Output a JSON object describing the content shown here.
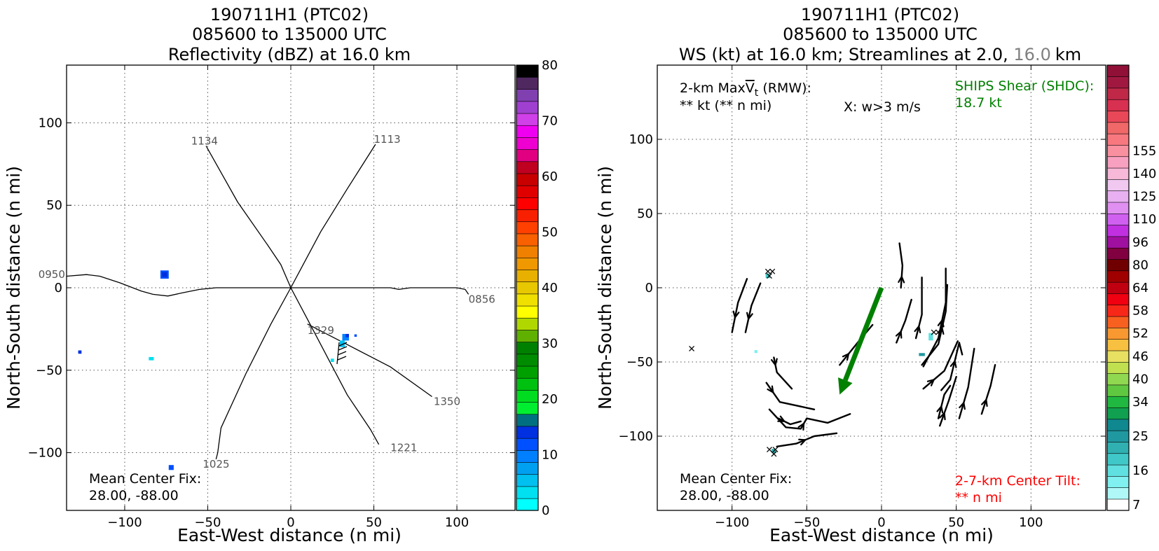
{
  "chart_data": [
    {
      "type": "heatmap",
      "title_lines": [
        "190711H1 (PTC02)",
        "085600 to 135000 UTC",
        "Reflectivity (dBZ) at 16.0 km"
      ],
      "xlabel": "East-West distance (n mi)",
      "ylabel": "North-South distance (n mi)",
      "xlim": [
        -135,
        135
      ],
      "ylim": [
        -135,
        135
      ],
      "xticks": [
        -100,
        -50,
        0,
        50,
        100
      ],
      "yticks": [
        -100,
        -50,
        0,
        50,
        100
      ],
      "xtick_labels": [
        "−100",
        "−50",
        "0",
        "50",
        "100"
      ],
      "ytick_labels": [
        "−100",
        "−50",
        "0",
        "50",
        "100"
      ],
      "grid": true,
      "colorbar": {
        "label_values": [
          0,
          10,
          20,
          30,
          40,
          50,
          60,
          70,
          80
        ],
        "tick_labels": [
          "0",
          "10",
          "20",
          "30",
          "40",
          "50",
          "60",
          "70",
          "80"
        ],
        "colors": [
          "#00ffff",
          "#00e0f0",
          "#00c0f0",
          "#00a0f0",
          "#0080ff",
          "#0050ff",
          "#0030e0",
          "#007080",
          "#00ee30",
          "#00dd20",
          "#00c010",
          "#00a000",
          "#008c00",
          "#008000",
          "#60b000",
          "#b0d800",
          "#ffff00",
          "#f0e000",
          "#e8c800",
          "#e8b000",
          "#f09800",
          "#f08000",
          "#f86000",
          "#ff4000",
          "#f82000",
          "#ff0000",
          "#e00000",
          "#c80000",
          "#c00020",
          "#e00080",
          "#ee00d0",
          "#f000f0",
          "#d040e8",
          "#a040d0",
          "#8040b0",
          "#502860",
          "#000000"
        ]
      },
      "flight_tracks": [
        {
          "label": "1134",
          "label_at": [
            -60,
            89
          ],
          "points": [
            [
              -51,
              86
            ],
            [
              -32,
              52
            ],
            [
              -14,
              26
            ],
            [
              -6,
              14
            ],
            [
              0,
              0
            ],
            [
              10,
              -19
            ],
            [
              22,
              -42
            ],
            [
              34,
              -65
            ],
            [
              48,
              -86
            ],
            [
              53,
              -95
            ]
          ],
          "end_label": "1221",
          "end_label_at": [
            60,
            -97
          ]
        },
        {
          "label": "1113",
          "label_at": [
            50,
            90
          ],
          "points": [
            [
              51,
              87
            ],
            [
              34,
              60
            ],
            [
              18,
              34
            ],
            [
              0,
              0
            ],
            [
              -12,
              -22
            ],
            [
              -27,
              -52
            ],
            [
              -42,
              -85
            ],
            [
              -44,
              -100
            ],
            [
              -45,
              -104
            ]
          ],
          "end_label": "1025",
          "end_label_at": [
            -53,
            -107
          ]
        },
        {
          "label": "0950",
          "label_at": [
            -152,
            8
          ],
          "points": [
            [
              -135,
              7
            ],
            [
              -123,
              8
            ],
            [
              -115,
              7
            ],
            [
              -103,
              3
            ],
            [
              -90,
              -2
            ],
            [
              -83,
              -4
            ],
            [
              -74,
              -5
            ],
            [
              -65,
              -3
            ],
            [
              -55,
              -1
            ],
            [
              -45,
              0
            ],
            [
              0,
              0
            ],
            [
              60,
              0
            ],
            [
              65,
              -1
            ],
            [
              72,
              0
            ],
            [
              100,
              0
            ],
            [
              105,
              -1
            ],
            [
              107,
              -4
            ]
          ],
          "end_label": "0856",
          "end_label_at": [
            107,
            -7
          ]
        },
        {
          "label": "1329",
          "label_at": [
            10,
            -26
          ],
          "points": [
            [
              10,
              -22
            ],
            [
              35,
              -35
            ],
            [
              60,
              -48
            ],
            [
              85,
              -66
            ]
          ],
          "end_label": "1350",
          "end_label_at": [
            86,
            -69
          ]
        }
      ],
      "echoes": [
        {
          "x": -76,
          "y": 8,
          "w": 5,
          "h": 5,
          "dbz": 10,
          "color": "#0050ff"
        },
        {
          "x": -76,
          "y": 8,
          "w": 3,
          "h": 3,
          "dbz": 12,
          "color": "#0030e0"
        },
        {
          "x": -127,
          "y": -39,
          "w": 2,
          "h": 2,
          "dbz": 12,
          "color": "#0030e0"
        },
        {
          "x": -84,
          "y": -43,
          "w": 3,
          "h": 2,
          "dbz": 4,
          "color": "#00e0f0"
        },
        {
          "x": -72,
          "y": -109,
          "w": 3,
          "h": 3,
          "dbz": 10,
          "color": "#0050ff"
        },
        {
          "x": 33,
          "y": -30,
          "w": 4,
          "h": 4,
          "dbz": 8,
          "color": "#0080ff"
        },
        {
          "x": 31,
          "y": -34,
          "w": 3,
          "h": 4,
          "dbz": 4,
          "color": "#00c0f0"
        },
        {
          "x": 39,
          "y": -29,
          "w": 1.5,
          "h": 1.5,
          "dbz": 10,
          "color": "#0050ff"
        },
        {
          "x": 25,
          "y": -44,
          "w": 2,
          "h": 2,
          "dbz": 2,
          "color": "#00e0f0"
        },
        {
          "x": 34,
          "y": -29,
          "w": 2,
          "h": 2,
          "dbz": 12,
          "color": "#0030e0"
        }
      ],
      "note": {
        "lines": [
          "Mean Center Fix:",
          "28.00, -88.00"
        ]
      }
    },
    {
      "type": "heatmap",
      "title_lines": [
        "190711H1 (PTC02)",
        "085600 to 135000 UTC"
      ],
      "title_line3": {
        "prefix": "WS (kt) at 16.0 km; Streamlines at 2.0,",
        "gray_part": "16.0",
        "suffix": "km"
      },
      "xlabel": "East-West distance (n mi)",
      "ylabel": "North-South distance (n mi)",
      "xlim": [
        -150,
        150
      ],
      "ylim": [
        -150,
        150
      ],
      "xticks": [
        -100,
        -50,
        0,
        50,
        100
      ],
      "yticks": [
        -100,
        -50,
        0,
        50,
        100
      ],
      "xtick_labels": [
        "−100",
        "−50",
        "0",
        "50",
        "100"
      ],
      "ytick_labels": [
        "−100",
        "−50",
        "0",
        "50",
        "100"
      ],
      "grid": true,
      "colorbar": {
        "tick_labels": [
          "7",
          "16",
          "25",
          "34",
          "40",
          "46",
          "52",
          "58",
          "64",
          "80",
          "96",
          "110",
          "125",
          "140",
          "155"
        ],
        "label_positions": [
          0,
          3,
          6,
          9,
          11,
          13,
          15,
          17,
          19,
          21,
          23,
          25,
          27,
          29,
          31
        ],
        "colors": [
          "#ffffff",
          "#b0f8f8",
          "#80f0f0",
          "#60e0e0",
          "#40c8c8",
          "#30b0b0",
          "#2098a0",
          "#108890",
          "#10a050",
          "#20b840",
          "#60c840",
          "#90d850",
          "#c0e050",
          "#e8e060",
          "#f8c040",
          "#f89830",
          "#f86020",
          "#f82818",
          "#f00010",
          "#c00010",
          "#a00000",
          "#700000",
          "#800040",
          "#a010a0",
          "#c030e0",
          "#d060f0",
          "#e090f0",
          "#e8b0f0",
          "#f0c8f0",
          "#f8b8d8",
          "#f8a0c0",
          "#f890a0",
          "#f87880",
          "#f06868",
          "#e84858",
          "#d83050",
          "#c02848",
          "#a01840",
          "#901038"
        ]
      },
      "info_lines": [
        "2-km MaxV̅t (RMW):",
        "** kt (** n mi)"
      ],
      "info_pieces": {
        "a": "2-km Max",
        "v": "V",
        "t": "t",
        "b": " (RMW):"
      },
      "wlegend": "X: w>3 m/s",
      "shear": {
        "lines": [
          "SHIPS Shear (SHDC):",
          "18.7 kt"
        ],
        "color": "#008000",
        "vector_from": [
          0,
          0
        ],
        "vector_to": [
          -28,
          -72
        ]
      },
      "tilt": {
        "lines": [
          "2-7-km Center Tilt:",
          "** n mi"
        ],
        "color": "#ff0000"
      },
      "note": {
        "lines": [
          "Mean Center Fix:",
          "28.00, -88.00"
        ]
      },
      "w_marks": [
        [
          -127,
          -41
        ],
        [
          -76,
          11
        ],
        [
          -73,
          11
        ],
        [
          -75,
          8
        ],
        [
          -71,
          -109
        ],
        [
          -75,
          -109
        ],
        [
          -72,
          -112
        ],
        [
          35,
          -30
        ],
        [
          38,
          -30
        ]
      ],
      "ws_cells": [
        {
          "x": -76,
          "y": 8,
          "w": 3,
          "h": 3,
          "color": "#40c8c8"
        },
        {
          "x": -84,
          "y": -43,
          "w": 2,
          "h": 2,
          "color": "#80f0f0"
        },
        {
          "x": 33,
          "y": -33,
          "w": 3,
          "h": 5,
          "color": "#60e0e0"
        },
        {
          "x": 27,
          "y": -45,
          "w": 4,
          "h": 2,
          "color": "#2098a0"
        },
        {
          "x": -72,
          "y": -110,
          "w": 3,
          "h": 3,
          "color": "#30b0b0"
        }
      ],
      "streamlines": [
        {
          "pts": [
            [
              -100,
              -30
            ],
            [
              -96,
              -10
            ],
            [
              -90,
              6
            ]
          ],
          "arrow": "down"
        },
        {
          "pts": [
            [
              -91,
              -30
            ],
            [
              -87,
              -12
            ],
            [
              -81,
              3
            ]
          ],
          "arrow": "down"
        },
        {
          "pts": [
            [
              -72,
              -47
            ],
            [
              -70,
              -57
            ],
            [
              -60,
              -68
            ]
          ],
          "arrow": "down"
        },
        {
          "pts": [
            [
              -77,
              -64
            ],
            [
              -68,
              -77
            ],
            [
              -45,
              -82
            ]
          ],
          "arrow": "down"
        },
        {
          "pts": [
            [
              -75,
              -82
            ],
            [
              -64,
              -94
            ],
            [
              -54,
              -95
            ],
            [
              -50,
              -88
            ],
            [
              -36,
              -91
            ],
            [
              -21,
              -85
            ]
          ],
          "arrow": "right"
        },
        {
          "pts": [
            [
              -69,
              -88
            ],
            [
              -61,
              -92
            ],
            [
              -54,
              -90
            ]
          ],
          "arrow": "right"
        },
        {
          "pts": [
            [
              -70,
              -107
            ],
            [
              -57,
              -105
            ],
            [
              -45,
              -100
            ],
            [
              -30,
              -98
            ]
          ],
          "arrow": "right"
        },
        {
          "pts": [
            [
              -28,
              -52
            ],
            [
              -16,
              -37
            ],
            [
              -6,
              -25
            ]
          ],
          "arrow": "up"
        },
        {
          "pts": [
            [
              10,
              -37
            ],
            [
              16,
              -22
            ],
            [
              20,
              -8
            ]
          ],
          "arrow": "up"
        },
        {
          "pts": [
            [
              13,
              0
            ],
            [
              14,
              15
            ],
            [
              12,
              30
            ]
          ],
          "arrow": "up"
        },
        {
          "pts": [
            [
              23,
              -34
            ],
            [
              27,
              -18
            ],
            [
              27,
              7
            ]
          ],
          "arrow": "up"
        },
        {
          "pts": [
            [
              27,
              -52
            ],
            [
              38,
              -38
            ],
            [
              43,
              -16
            ],
            [
              44,
              2
            ]
          ],
          "arrow": "up"
        },
        {
          "pts": [
            [
              28,
              -53
            ],
            [
              38,
              -34
            ],
            [
              43,
              -10
            ],
            [
              43,
              13
            ]
          ],
          "arrow": "up"
        },
        {
          "pts": [
            [
              40,
              -69
            ],
            [
              46,
              -62
            ],
            [
              52,
              -37
            ],
            [
              54,
              -45
            ]
          ],
          "arrow": "up"
        },
        {
          "pts": [
            [
              28,
              -68
            ],
            [
              42,
              -56
            ],
            [
              51,
              -36
            ]
          ],
          "arrow": "up"
        },
        {
          "pts": [
            [
              38,
              -88
            ],
            [
              42,
              -72
            ],
            [
              46,
              -66
            ]
          ],
          "arrow": "up"
        },
        {
          "pts": [
            [
              39,
              -93
            ],
            [
              45,
              -76
            ],
            [
              50,
              -60
            ]
          ],
          "arrow": "up"
        },
        {
          "pts": [
            [
              52,
              -88
            ],
            [
              58,
              -67
            ],
            [
              62,
              -41
            ]
          ],
          "arrow": "up"
        },
        {
          "pts": [
            [
              67,
              -85
            ],
            [
              73,
              -66
            ],
            [
              76,
              -52
            ]
          ],
          "arrow": "up"
        }
      ]
    }
  ]
}
